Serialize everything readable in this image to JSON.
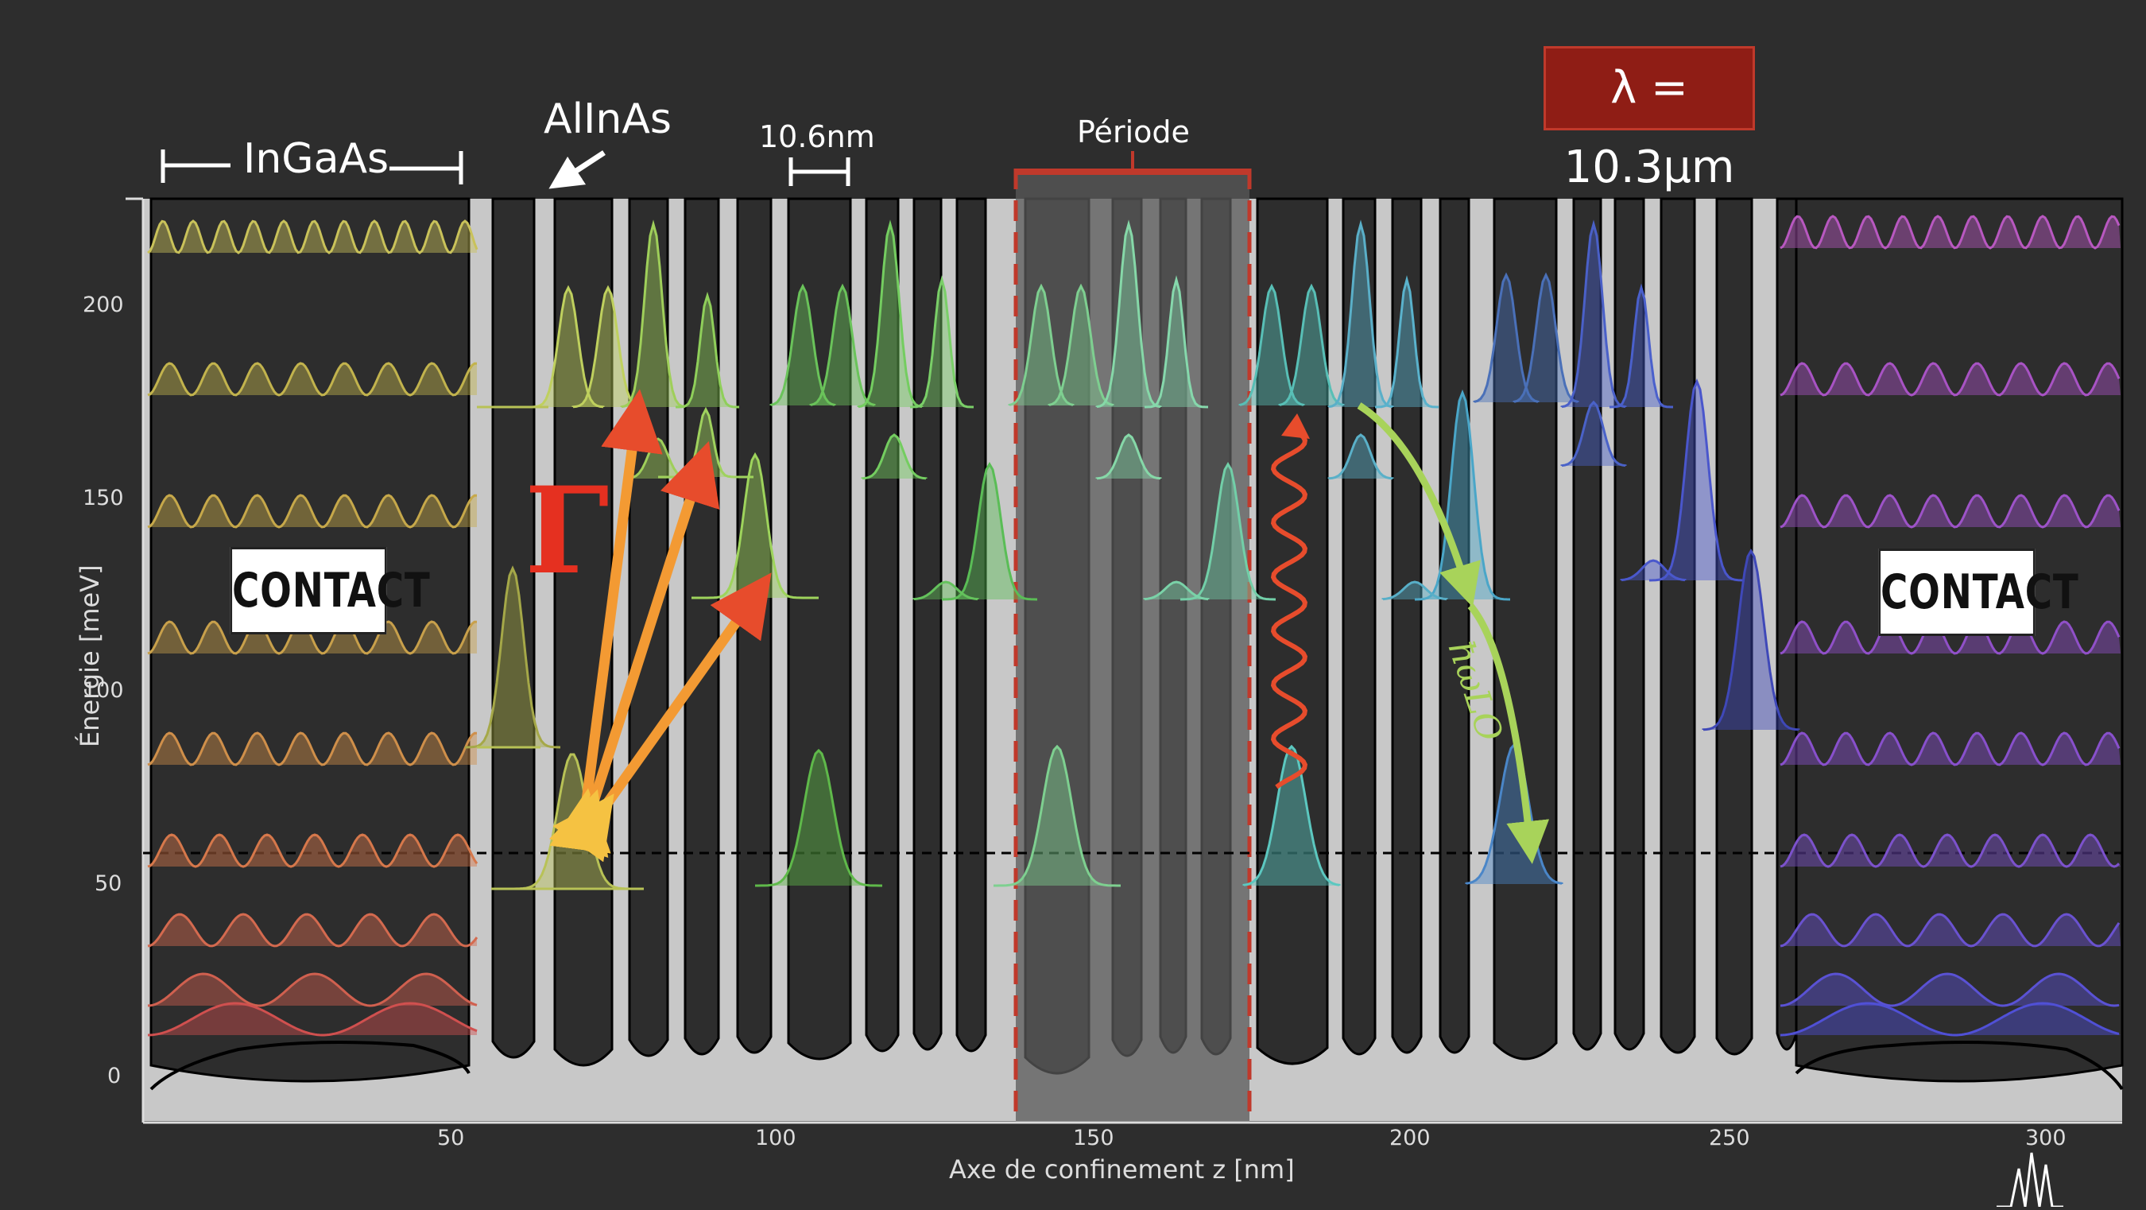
{
  "labels": {
    "ingaas": "InGaAs",
    "allnas": "AlInAs",
    "width": "10.6nm",
    "periode": "Période",
    "lambda": "λ = 10.3μm",
    "contact_left": "CONTACT",
    "contact_right": "CONTACT",
    "gamma": "Γ",
    "phonon": "ħωLO",
    "ylabel": "Énergie [meV]",
    "xlabel": "Axe de confinement z [nm]"
  },
  "axes": {
    "yticks": [
      "0",
      "50",
      "100",
      "150",
      "200"
    ],
    "xticks": [
      "50",
      "100",
      "150",
      "200",
      "250",
      "300"
    ]
  },
  "colors": {
    "background": "#2d2d2d",
    "barrier": "#c8c8c8",
    "well": "#2d2d2d",
    "period": "#5a5a5a",
    "period_border": "#c0392b",
    "lambda_box": "#8f1d15",
    "arrow_red": "#e74c2c",
    "arrow_green": "#a8d35a"
  }
}
